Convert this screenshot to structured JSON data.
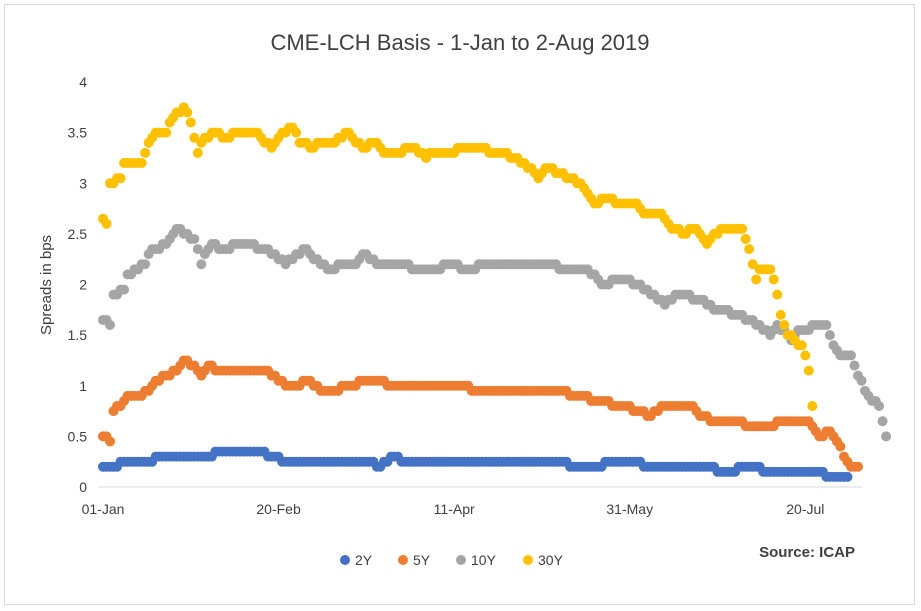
{
  "chart_data": {
    "type": "scatter",
    "title": "CME-LCH Basis -  1-Jan to 2-Aug 2019",
    "xlabel": "",
    "ylabel": "Spreads in bps",
    "source": "Source: ICAP",
    "x_start": "2019-01-01",
    "x_end": "2019-08-02",
    "xlim": [
      0,
      215
    ],
    "ylim": [
      0,
      4
    ],
    "y_ticks": [
      "0",
      "0.5",
      "1",
      "1.5",
      "2",
      "2.5",
      "3",
      "3.5",
      "4"
    ],
    "x_ticks": [
      {
        "label": "01-Jan",
        "day": 0
      },
      {
        "label": "20-Feb",
        "day": 50
      },
      {
        "label": "11-Apr",
        "day": 100
      },
      {
        "label": "31-May",
        "day": 150
      },
      {
        "label": "20-Jul",
        "day": 200
      }
    ],
    "grid": false,
    "legend_position": "bottom",
    "series": [
      {
        "name": "2Y",
        "color": "#4472C4",
        "points": [
          [
            0,
            0.2
          ],
          [
            20,
            0.3
          ],
          [
            28,
            0.3
          ],
          [
            34,
            0.35
          ],
          [
            46,
            0.35
          ],
          [
            48,
            0.3
          ],
          [
            52,
            0.25
          ],
          [
            72,
            0.25
          ],
          [
            76,
            0.25
          ],
          [
            79,
            0.2
          ],
          [
            82,
            0.3
          ],
          [
            86,
            0.25
          ],
          [
            130,
            0.25
          ],
          [
            134,
            0.2
          ],
          [
            142,
            0.2
          ],
          [
            144,
            0.25
          ],
          [
            150,
            0.25
          ],
          [
            156,
            0.2
          ],
          [
            172,
            0.2
          ],
          [
            176,
            0.15
          ],
          [
            178,
            0.15
          ],
          [
            184,
            0.2
          ],
          [
            190,
            0.15
          ],
          [
            196,
            0.15
          ],
          [
            200,
            0.15
          ],
          [
            204,
            0.15
          ],
          [
            207,
            0.1
          ],
          [
            212,
            0.1
          ]
        ]
      },
      {
        "name": "5Y",
        "color": "#ED7D31",
        "points": [
          [
            0,
            0.5
          ],
          [
            2,
            0.45
          ],
          [
            3,
            0.75
          ],
          [
            5,
            0.8
          ],
          [
            7,
            0.9
          ],
          [
            10,
            0.9
          ],
          [
            13,
            0.95
          ],
          [
            15,
            1.05
          ],
          [
            18,
            1.1
          ],
          [
            21,
            1.15
          ],
          [
            23,
            1.25
          ],
          [
            26,
            1.2
          ],
          [
            28,
            1.1
          ],
          [
            30,
            1.2
          ],
          [
            34,
            1.15
          ],
          [
            46,
            1.15
          ],
          [
            48,
            1.1
          ],
          [
            52,
            1.0
          ],
          [
            56,
            1.0
          ],
          [
            58,
            1.05
          ],
          [
            62,
            0.95
          ],
          [
            66,
            0.95
          ],
          [
            70,
            1.0
          ],
          [
            76,
            1.05
          ],
          [
            84,
            1.0
          ],
          [
            100,
            1.0
          ],
          [
            108,
            0.95
          ],
          [
            128,
            0.95
          ],
          [
            136,
            0.9
          ],
          [
            140,
            0.85
          ],
          [
            148,
            0.8
          ],
          [
            152,
            0.75
          ],
          [
            156,
            0.7
          ],
          [
            160,
            0.8
          ],
          [
            168,
            0.8
          ],
          [
            170,
            0.7
          ],
          [
            174,
            0.65
          ],
          [
            180,
            0.65
          ],
          [
            184,
            0.6
          ],
          [
            190,
            0.6
          ],
          [
            194,
            0.65
          ],
          [
            200,
            0.65
          ],
          [
            202,
            0.6
          ],
          [
            204,
            0.5
          ],
          [
            207,
            0.55
          ],
          [
            209,
            0.45
          ],
          [
            211,
            0.3
          ],
          [
            213,
            0.2
          ],
          [
            215,
            0.2
          ]
        ]
      },
      {
        "name": "10Y",
        "color": "#A5A5A5",
        "points": [
          [
            0,
            1.65
          ],
          [
            2,
            1.6
          ],
          [
            3,
            1.9
          ],
          [
            6,
            1.95
          ],
          [
            7,
            2.1
          ],
          [
            12,
            2.2
          ],
          [
            13,
            2.3
          ],
          [
            15,
            2.35
          ],
          [
            18,
            2.4
          ],
          [
            21,
            2.55
          ],
          [
            23,
            2.5
          ],
          [
            26,
            2.45
          ],
          [
            28,
            2.2
          ],
          [
            29,
            2.3
          ],
          [
            31,
            2.4
          ],
          [
            34,
            2.35
          ],
          [
            40,
            2.4
          ],
          [
            46,
            2.35
          ],
          [
            48,
            2.3
          ],
          [
            52,
            2.2
          ],
          [
            56,
            2.3
          ],
          [
            58,
            2.35
          ],
          [
            60,
            2.25
          ],
          [
            64,
            2.15
          ],
          [
            70,
            2.2
          ],
          [
            72,
            2.2
          ],
          [
            74,
            2.3
          ],
          [
            78,
            2.2
          ],
          [
            86,
            2.2
          ],
          [
            88,
            2.15
          ],
          [
            96,
            2.15
          ],
          [
            98,
            2.2
          ],
          [
            104,
            2.15
          ],
          [
            110,
            2.2
          ],
          [
            128,
            2.2
          ],
          [
            130,
            2.15
          ],
          [
            136,
            2.15
          ],
          [
            140,
            2.1
          ],
          [
            142,
            2.0
          ],
          [
            148,
            2.05
          ],
          [
            152,
            2.0
          ],
          [
            156,
            1.9
          ],
          [
            160,
            1.8
          ],
          [
            164,
            1.9
          ],
          [
            170,
            1.85
          ],
          [
            174,
            1.75
          ],
          [
            176,
            1.75
          ],
          [
            180,
            1.7
          ],
          [
            184,
            1.65
          ],
          [
            186,
            1.6
          ],
          [
            188,
            1.55
          ],
          [
            190,
            1.5
          ],
          [
            192,
            1.6
          ],
          [
            196,
            1.45
          ],
          [
            198,
            1.55
          ],
          [
            200,
            1.55
          ],
          [
            204,
            1.6
          ],
          [
            206,
            1.6
          ],
          [
            208,
            1.4
          ],
          [
            210,
            1.3
          ],
          [
            213,
            1.3
          ],
          [
            214,
            1.2
          ],
          [
            215,
            1.1
          ],
          [
            217,
            0.95
          ],
          [
            219,
            0.85
          ],
          [
            221,
            0.8
          ],
          [
            222,
            0.65
          ],
          [
            223,
            0.5
          ]
        ]
      },
      {
        "name": "30Y",
        "color": "#FFC000",
        "points": [
          [
            0,
            2.65
          ],
          [
            1,
            2.6
          ],
          [
            2,
            3.0
          ],
          [
            5,
            3.05
          ],
          [
            6,
            3.2
          ],
          [
            11,
            3.2
          ],
          [
            13,
            3.4
          ],
          [
            15,
            3.5
          ],
          [
            18,
            3.5
          ],
          [
            19,
            3.6
          ],
          [
            20,
            3.65
          ],
          [
            22,
            3.7
          ],
          [
            23,
            3.75
          ],
          [
            25,
            3.6
          ],
          [
            27,
            3.3
          ],
          [
            28,
            3.4
          ],
          [
            30,
            3.45
          ],
          [
            32,
            3.5
          ],
          [
            34,
            3.45
          ],
          [
            40,
            3.5
          ],
          [
            44,
            3.5
          ],
          [
            46,
            3.4
          ],
          [
            48,
            3.35
          ],
          [
            50,
            3.45
          ],
          [
            52,
            3.5
          ],
          [
            54,
            3.55
          ],
          [
            56,
            3.4
          ],
          [
            60,
            3.35
          ],
          [
            62,
            3.4
          ],
          [
            66,
            3.4
          ],
          [
            68,
            3.45
          ],
          [
            70,
            3.5
          ],
          [
            72,
            3.4
          ],
          [
            74,
            3.35
          ],
          [
            78,
            3.4
          ],
          [
            80,
            3.3
          ],
          [
            84,
            3.3
          ],
          [
            88,
            3.35
          ],
          [
            90,
            3.3
          ],
          [
            92,
            3.25
          ],
          [
            94,
            3.3
          ],
          [
            100,
            3.3
          ],
          [
            102,
            3.35
          ],
          [
            108,
            3.35
          ],
          [
            110,
            3.3
          ],
          [
            114,
            3.3
          ],
          [
            116,
            3.25
          ],
          [
            120,
            3.2
          ],
          [
            124,
            3.05
          ],
          [
            126,
            3.15
          ],
          [
            130,
            3.1
          ],
          [
            132,
            3.05
          ],
          [
            136,
            3.0
          ],
          [
            138,
            2.9
          ],
          [
            140,
            2.8
          ],
          [
            144,
            2.85
          ],
          [
            146,
            2.8
          ],
          [
            152,
            2.8
          ],
          [
            154,
            2.7
          ],
          [
            158,
            2.7
          ],
          [
            160,
            2.65
          ],
          [
            162,
            2.55
          ],
          [
            166,
            2.5
          ],
          [
            168,
            2.55
          ],
          [
            170,
            2.5
          ],
          [
            172,
            2.4
          ],
          [
            174,
            2.5
          ],
          [
            178,
            2.55
          ],
          [
            182,
            2.55
          ],
          [
            184,
            2.35
          ],
          [
            186,
            2.05
          ],
          [
            187,
            2.15
          ],
          [
            190,
            2.15
          ],
          [
            191,
            2.05
          ],
          [
            193,
            1.7
          ],
          [
            195,
            1.5
          ],
          [
            197,
            1.45
          ],
          [
            199,
            1.4
          ],
          [
            200,
            1.3
          ],
          [
            201,
            1.15
          ],
          [
            202,
            0.8
          ]
        ]
      }
    ]
  }
}
